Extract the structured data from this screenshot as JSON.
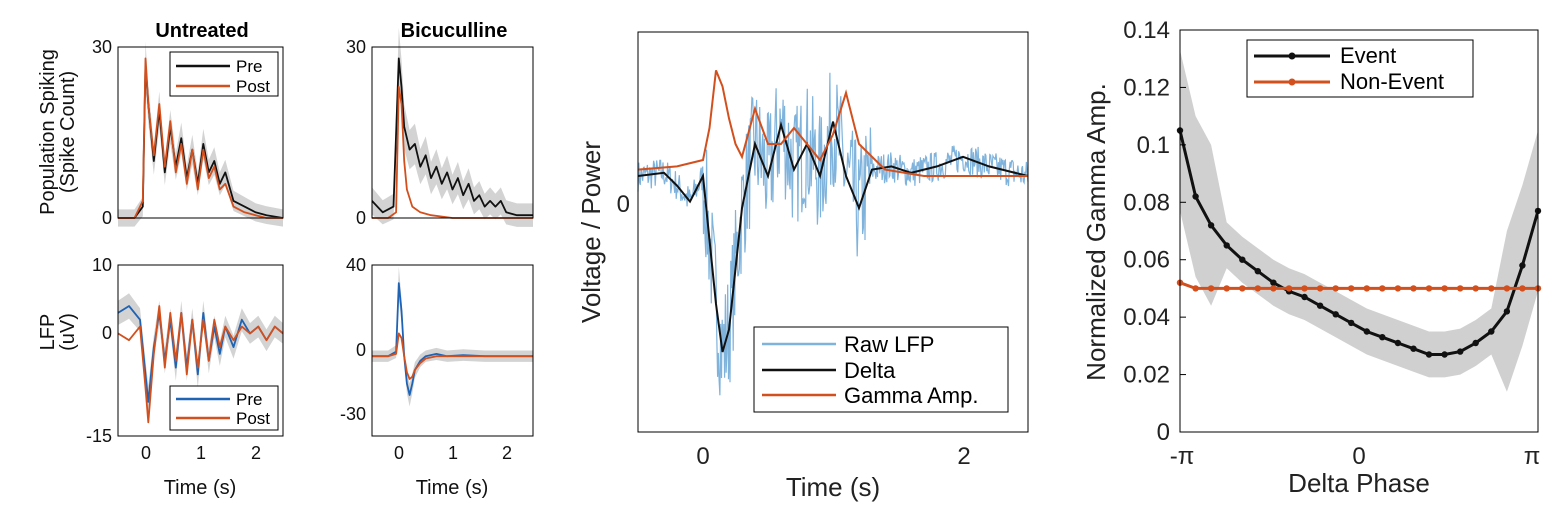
{
  "colors": {
    "pre": "#111111",
    "post": "#d2501e",
    "pre_lfp": "#1f63b4",
    "raw": "#7fb3dc",
    "band": "#c8c8c8"
  },
  "chart_data": [
    {
      "id": "A",
      "type": "line",
      "title": "Untreated",
      "ylabel": [
        "Population Spiking",
        "(Spike Count)"
      ],
      "xlim": [
        -0.5,
        2.5
      ],
      "ylim": [
        0,
        30
      ],
      "yticks": [
        "0",
        "30"
      ],
      "xticks": [],
      "legend": [
        "Pre",
        "Post"
      ],
      "legend_pos": "top-right",
      "series": [
        {
          "name": "Pre",
          "x": [
            -0.5,
            -0.2,
            -0.05,
            0,
            0.05,
            0.15,
            0.25,
            0.35,
            0.45,
            0.55,
            0.65,
            0.75,
            0.85,
            0.95,
            1.05,
            1.15,
            1.25,
            1.35,
            1.45,
            1.6,
            1.8,
            2.0,
            2.2,
            2.5
          ],
          "y": [
            0,
            0,
            2,
            27,
            20,
            10,
            19,
            8,
            16,
            9,
            14,
            7,
            12,
            6,
            13,
            8,
            10,
            6,
            8,
            3,
            2,
            1,
            0.5,
            0
          ]
        },
        {
          "name": "Post",
          "x": [
            -0.5,
            -0.2,
            -0.05,
            0,
            0.05,
            0.15,
            0.25,
            0.35,
            0.45,
            0.55,
            0.65,
            0.75,
            0.85,
            0.95,
            1.05,
            1.15,
            1.25,
            1.35,
            1.45,
            1.6,
            1.8,
            2.0,
            2.2,
            2.5
          ],
          "y": [
            0,
            0,
            3,
            28,
            20,
            11,
            20,
            9,
            17,
            8,
            13,
            6,
            12,
            5,
            12,
            7,
            9,
            5,
            6,
            2,
            1,
            0.5,
            0,
            0
          ]
        }
      ]
    },
    {
      "id": "B",
      "type": "line",
      "title": "Bicuculline",
      "xlim": [
        -0.5,
        2.5
      ],
      "ylim": [
        0,
        30
      ],
      "yticks": [
        "0",
        "30"
      ],
      "xticks": [],
      "series": [
        {
          "name": "Pre",
          "x": [
            -0.5,
            -0.3,
            -0.1,
            0,
            0.05,
            0.1,
            0.2,
            0.3,
            0.4,
            0.5,
            0.6,
            0.7,
            0.8,
            0.9,
            1.0,
            1.1,
            1.2,
            1.3,
            1.4,
            1.5,
            1.6,
            1.7,
            1.8,
            1.9,
            2.0,
            2.2,
            2.5
          ],
          "y": [
            3,
            1,
            2,
            28,
            23,
            16,
            12,
            13,
            9,
            11,
            7,
            9,
            6,
            8,
            5,
            7,
            4,
            6,
            3,
            4,
            2,
            3,
            2,
            3,
            1,
            0.5,
            0.5
          ]
        },
        {
          "name": "Post",
          "x": [
            -0.5,
            -0.2,
            -0.05,
            0,
            0.05,
            0.1,
            0.15,
            0.25,
            0.4,
            0.6,
            1.0,
            2.5
          ],
          "y": [
            0,
            0,
            1,
            23,
            20,
            10,
            5,
            2,
            1,
            0.5,
            0,
            0
          ]
        }
      ]
    },
    {
      "id": "C",
      "type": "line",
      "ylabel": [
        "LFP",
        "(uV)"
      ],
      "xlabel": "Time (s)",
      "xlim": [
        -0.5,
        2.5
      ],
      "ylim": [
        -15,
        10
      ],
      "yticks": [
        "10",
        "0",
        "-15"
      ],
      "xticks": [
        "0",
        "1",
        "2"
      ],
      "legend": [
        "Pre",
        "Post"
      ],
      "legend_pos": "bottom-right",
      "series": [
        {
          "name": "Pre",
          "x": [
            -0.5,
            -0.3,
            -0.1,
            0,
            0.05,
            0.15,
            0.25,
            0.35,
            0.45,
            0.55,
            0.65,
            0.75,
            0.85,
            0.95,
            1.05,
            1.15,
            1.25,
            1.35,
            1.45,
            1.6,
            1.75,
            1.9,
            2.05,
            2.2,
            2.35,
            2.5
          ],
          "y": [
            3,
            4,
            2,
            -6,
            -10,
            -2,
            3,
            -4,
            2,
            -5,
            3,
            -5,
            2,
            -6,
            3,
            -4,
            1,
            -3,
            1,
            -2,
            2,
            0,
            1,
            -1,
            1,
            0
          ]
        },
        {
          "name": "Post",
          "x": [
            -0.5,
            -0.3,
            -0.1,
            0,
            0.05,
            0.15,
            0.25,
            0.35,
            0.45,
            0.55,
            0.65,
            0.75,
            0.85,
            0.95,
            1.05,
            1.15,
            1.25,
            1.35,
            1.45,
            1.6,
            1.75,
            1.9,
            2.05,
            2.2,
            2.35,
            2.5
          ],
          "y": [
            0,
            -1,
            1,
            -8,
            -13,
            -3,
            4,
            -5,
            3,
            -4,
            3,
            -6,
            2,
            -5,
            2,
            -4,
            2,
            -2,
            1,
            -1,
            1,
            0,
            1,
            -1,
            1,
            0
          ]
        }
      ]
    },
    {
      "id": "D",
      "type": "line",
      "xlabel": "Time (s)",
      "xlim": [
        -0.5,
        2.5
      ],
      "ylim": [
        -35,
        40
      ],
      "yticks": [
        "40",
        "0",
        "-30"
      ],
      "xticks": [
        "0",
        "1",
        "2"
      ],
      "series": [
        {
          "name": "Pre",
          "x": [
            -0.5,
            -0.2,
            -0.05,
            0,
            0.05,
            0.1,
            0.15,
            0.2,
            0.25,
            0.3,
            0.4,
            0.5,
            0.7,
            0.9,
            1.2,
            1.6,
            2.0,
            2.5
          ],
          "y": [
            0,
            0,
            2,
            32,
            20,
            0,
            -12,
            -17,
            -12,
            -6,
            -2,
            0,
            1,
            0,
            0.5,
            0,
            0,
            0
          ]
        },
        {
          "name": "Post",
          "x": [
            -0.5,
            -0.2,
            -0.05,
            0,
            0.05,
            0.1,
            0.15,
            0.2,
            0.25,
            0.3,
            0.4,
            0.5,
            0.7,
            0.9,
            1.2,
            1.6,
            2.0,
            2.5
          ],
          "y": [
            0,
            0,
            1,
            10,
            8,
            0,
            -7,
            -10,
            -9,
            -6,
            -3,
            -1,
            0,
            0,
            0,
            0,
            0,
            0
          ]
        }
      ]
    },
    {
      "id": "E",
      "type": "line",
      "ylabel": [
        "Voltage / Power"
      ],
      "xlabel": "Time (s)",
      "xlim": [
        -0.6,
        2.4
      ],
      "ylim": [
        -8,
        4.5
      ],
      "yticks": [
        "0"
      ],
      "xticks": [
        "0",
        "2"
      ],
      "legend": [
        "Raw LFP",
        "Delta",
        "Gamma Amp."
      ],
      "legend_pos": "bottom-right",
      "series": [
        {
          "name": "Delta",
          "x": [
            -0.6,
            -0.4,
            -0.3,
            -0.2,
            -0.1,
            0,
            0.05,
            0.1,
            0.2,
            0.3,
            0.4,
            0.5,
            0.6,
            0.7,
            0.8,
            0.9,
            1.0,
            1.1,
            1.2,
            1.35,
            1.5,
            1.7,
            1.9,
            2.1,
            2.4
          ],
          "y": [
            0,
            0.1,
            -0.3,
            -0.8,
            0,
            -4,
            -5.5,
            -4.8,
            -1,
            1,
            0,
            1.6,
            0.2,
            1,
            0,
            1.7,
            0,
            -1,
            0.2,
            0.3,
            0.1,
            0.3,
            0.6,
            0.3,
            0
          ]
        },
        {
          "name": "Gamma Amp.",
          "x": [
            -0.6,
            -0.3,
            -0.1,
            -0.05,
            0,
            0.05,
            0.1,
            0.15,
            0.2,
            0.3,
            0.4,
            0.5,
            0.6,
            0.7,
            0.8,
            0.9,
            1.0,
            1.1,
            1.3,
            1.6,
            2.0,
            2.4
          ],
          "y": [
            0.2,
            0.3,
            0.5,
            1.5,
            3.3,
            2.8,
            1.8,
            1,
            0.6,
            2.1,
            1,
            1,
            1.5,
            1,
            0.5,
            1.3,
            2.6,
            1,
            0.2,
            0,
            0,
            0
          ]
        }
      ]
    },
    {
      "id": "F",
      "type": "line",
      "ylabel": [
        "Normalized Gamma Amp."
      ],
      "xlabel": "Delta Phase",
      "xlim": [
        -3.1416,
        3.1416
      ],
      "ylim": [
        0,
        0.14
      ],
      "yticks": [
        "0",
        "0.02",
        "0.04",
        "0.06",
        "0.08",
        "0.1",
        "0.12",
        "0.14"
      ],
      "xticks": [
        "-π",
        "0",
        "π"
      ],
      "legend": [
        "Event",
        "Non-Event"
      ],
      "legend_pos": "top-center",
      "series": [
        {
          "name": "Event",
          "y": [
            0.105,
            0.082,
            0.072,
            0.065,
            0.06,
            0.056,
            0.052,
            0.049,
            0.047,
            0.044,
            0.041,
            0.038,
            0.035,
            0.033,
            0.031,
            0.029,
            0.027,
            0.027,
            0.028,
            0.031,
            0.035,
            0.042,
            0.058,
            0.077
          ]
        },
        {
          "name": "Non-Event",
          "y": [
            0.052,
            0.05,
            0.05,
            0.05,
            0.05,
            0.05,
            0.05,
            0.05,
            0.05,
            0.05,
            0.05,
            0.05,
            0.05,
            0.05,
            0.05,
            0.05,
            0.05,
            0.05,
            0.05,
            0.05,
            0.05,
            0.05,
            0.05,
            0.05
          ]
        }
      ]
    }
  ]
}
